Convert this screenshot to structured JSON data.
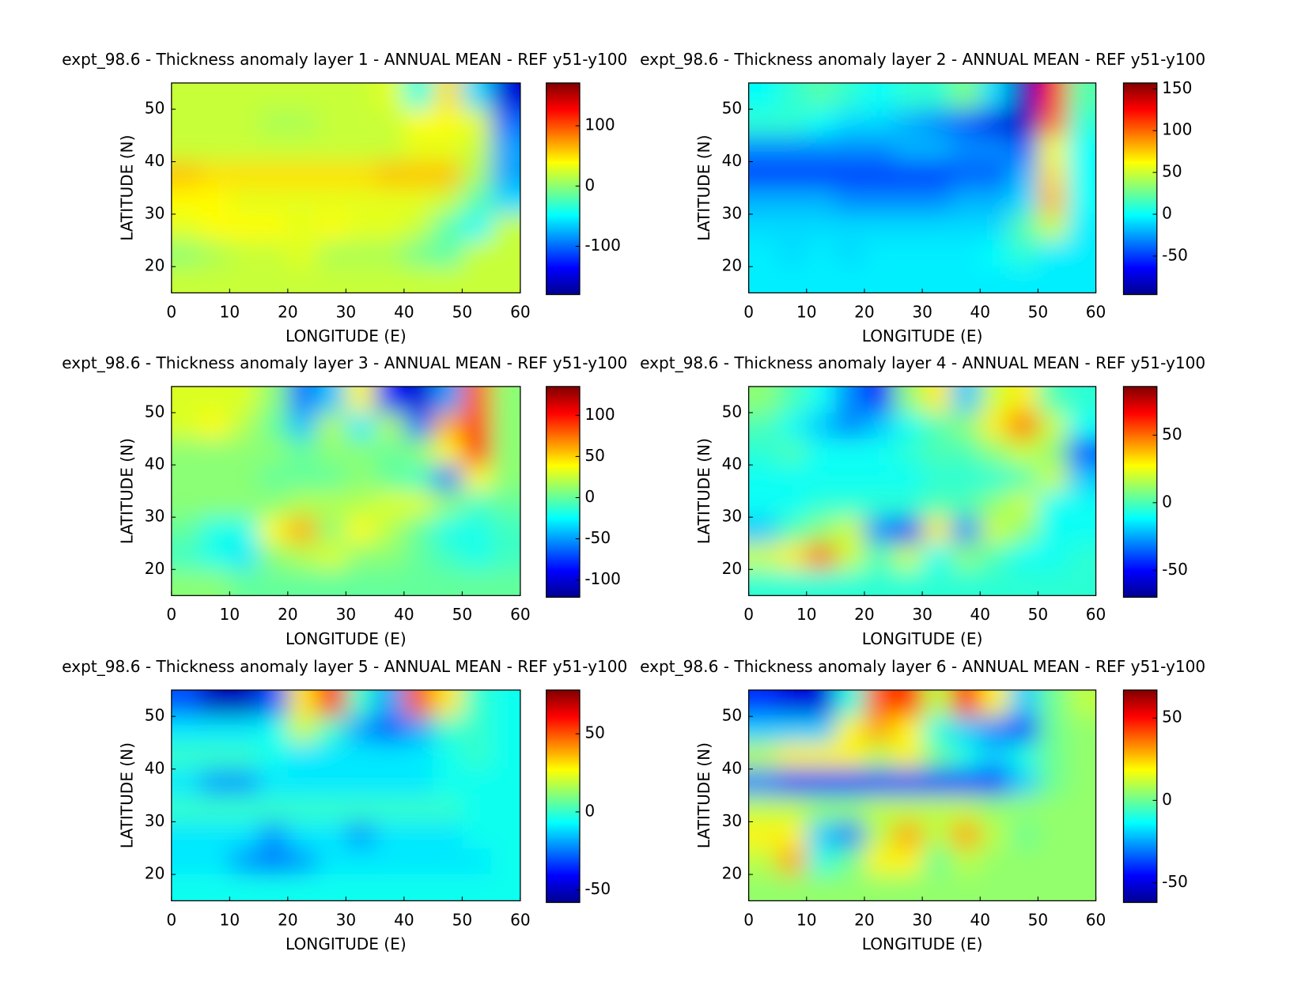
{
  "chart_data": [
    {
      "type": "contour",
      "title": "expt_98.6 - Thickness anomaly layer 1 - ANNUAL MEAN - REF y51-y100",
      "xlabel": "LONGITUDE (E)",
      "ylabel": "LATITUDE (N)",
      "xlim": [
        0,
        60
      ],
      "ylim": [
        15,
        55
      ],
      "xticks": [
        0,
        10,
        20,
        30,
        40,
        50,
        60
      ],
      "yticks": [
        20,
        30,
        40,
        50
      ],
      "colormap": "jet",
      "clim": [
        -180,
        171
      ],
      "cticks": [
        -100,
        0,
        100
      ],
      "x": [
        2.5,
        7.5,
        12.5,
        17.5,
        22.5,
        27.5,
        32.5,
        37.5,
        42.5,
        47.5,
        52.5,
        57.5
      ],
      "y": [
        52.5,
        47.5,
        42.5,
        37.5,
        32.5,
        27.5,
        22.5,
        17.5
      ],
      "z": [
        [
          20,
          20,
          20,
          20,
          20,
          20,
          20,
          30,
          -40,
          50,
          -60,
          -150
        ],
        [
          20,
          20,
          20,
          10,
          10,
          20,
          20,
          20,
          40,
          40,
          30,
          -100
        ],
        [
          20,
          20,
          20,
          20,
          20,
          20,
          20,
          20,
          30,
          30,
          20,
          -80
        ],
        [
          60,
          50,
          50,
          50,
          50,
          50,
          50,
          60,
          60,
          60,
          10,
          -80
        ],
        [
          40,
          40,
          30,
          30,
          30,
          30,
          30,
          30,
          30,
          20,
          -20,
          -60
        ],
        [
          30,
          40,
          40,
          40,
          30,
          40,
          30,
          30,
          20,
          -20,
          -50,
          20
        ],
        [
          0,
          10,
          20,
          20,
          30,
          10,
          10,
          10,
          -10,
          -20,
          20,
          20
        ],
        [
          20,
          20,
          20,
          20,
          20,
          20,
          20,
          20,
          20,
          20,
          20,
          20
        ]
      ]
    },
    {
      "type": "contour",
      "title": "expt_98.6 - Thickness anomaly layer 2 - ANNUAL MEAN - REF y51-y100",
      "xlabel": "LONGITUDE (E)",
      "ylabel": "LATITUDE (N)",
      "xlim": [
        0,
        60
      ],
      "ylim": [
        15,
        55
      ],
      "xticks": [
        0,
        10,
        20,
        30,
        40,
        50,
        60
      ],
      "yticks": [
        20,
        30,
        40,
        50
      ],
      "colormap": "jet",
      "clim": [
        -96,
        157
      ],
      "cticks": [
        -50,
        0,
        50,
        100,
        150
      ],
      "x": [
        2.5,
        7.5,
        12.5,
        17.5,
        22.5,
        27.5,
        32.5,
        37.5,
        42.5,
        47.5,
        52.5,
        57.5
      ],
      "y": [
        52.5,
        47.5,
        42.5,
        37.5,
        32.5,
        27.5,
        22.5,
        17.5
      ],
      "z": [
        [
          0,
          10,
          20,
          10,
          0,
          10,
          10,
          30,
          -10,
          -80,
          120,
          20
        ],
        [
          10,
          10,
          0,
          -10,
          -10,
          -20,
          -30,
          -40,
          -70,
          -80,
          100,
          10
        ],
        [
          -30,
          -30,
          -30,
          -30,
          -30,
          -20,
          -20,
          -30,
          -30,
          -40,
          60,
          0
        ],
        [
          -50,
          -50,
          -50,
          -50,
          -50,
          -50,
          -50,
          -40,
          -40,
          -20,
          70,
          0
        ],
        [
          -20,
          -20,
          -20,
          -30,
          -30,
          -30,
          -30,
          -20,
          -20,
          -10,
          80,
          0
        ],
        [
          -10,
          -10,
          -10,
          -10,
          -10,
          -10,
          -10,
          -10,
          -10,
          20,
          50,
          -5
        ],
        [
          -5,
          -10,
          -5,
          -10,
          -5,
          -5,
          -5,
          -5,
          0,
          10,
          -5,
          -5
        ],
        [
          -5,
          -5,
          -5,
          -5,
          -5,
          -5,
          -5,
          -5,
          -5,
          -5,
          -5,
          -5
        ]
      ]
    },
    {
      "type": "contour",
      "title": "expt_98.6 - Thickness anomaly layer 3 - ANNUAL MEAN - REF y51-y100",
      "xlabel": "LONGITUDE (E)",
      "ylabel": "LATITUDE (N)",
      "xlim": [
        0,
        60
      ],
      "ylim": [
        15,
        55
      ],
      "xticks": [
        0,
        10,
        20,
        30,
        40,
        50,
        60
      ],
      "yticks": [
        20,
        30,
        40,
        50
      ],
      "colormap": "jet",
      "clim": [
        -121,
        135
      ],
      "cticks": [
        -100,
        -50,
        0,
        50,
        100
      ],
      "x": [
        2.5,
        7.5,
        12.5,
        17.5,
        22.5,
        27.5,
        32.5,
        37.5,
        42.5,
        47.5,
        52.5,
        57.5
      ],
      "y": [
        52.5,
        47.5,
        42.5,
        37.5,
        32.5,
        27.5,
        22.5,
        17.5
      ],
      "z": [
        [
          30,
          30,
          30,
          10,
          -60,
          -40,
          40,
          -80,
          -100,
          -50,
          80,
          10
        ],
        [
          30,
          40,
          20,
          0,
          -40,
          20,
          -30,
          20,
          -60,
          60,
          90,
          10
        ],
        [
          10,
          10,
          10,
          10,
          0,
          10,
          10,
          0,
          10,
          40,
          100,
          10
        ],
        [
          10,
          10,
          10,
          0,
          0,
          0,
          10,
          0,
          -10,
          -60,
          40,
          10
        ],
        [
          10,
          10,
          10,
          10,
          20,
          20,
          20,
          30,
          30,
          10,
          -10,
          0
        ],
        [
          0,
          -20,
          -20,
          40,
          60,
          10,
          40,
          20,
          0,
          -20,
          -20,
          -10
        ],
        [
          -10,
          -20,
          -30,
          10,
          20,
          30,
          10,
          10,
          0,
          -10,
          -20,
          -10
        ],
        [
          10,
          10,
          0,
          0,
          0,
          0,
          0,
          0,
          0,
          0,
          0,
          0
        ]
      ]
    },
    {
      "type": "contour",
      "title": "expt_98.6 - Thickness anomaly layer 4 - ANNUAL MEAN - REF y51-y100",
      "xlabel": "LONGITUDE (E)",
      "ylabel": "LATITUDE (N)",
      "xlim": [
        0,
        60
      ],
      "ylim": [
        15,
        55
      ],
      "xticks": [
        0,
        10,
        20,
        30,
        40,
        50,
        60
      ],
      "yticks": [
        20,
        30,
        40,
        50
      ],
      "colormap": "jet",
      "clim": [
        -70,
        86
      ],
      "cticks": [
        -50,
        0,
        50
      ],
      "x": [
        2.5,
        7.5,
        12.5,
        17.5,
        22.5,
        27.5,
        32.5,
        37.5,
        42.5,
        47.5,
        52.5,
        57.5
      ],
      "y": [
        52.5,
        47.5,
        42.5,
        37.5,
        32.5,
        27.5,
        22.5,
        17.5
      ],
      "z": [
        [
          10,
          0,
          -10,
          -30,
          -50,
          10,
          30,
          -20,
          20,
          30,
          0,
          -5
        ],
        [
          0,
          -10,
          -20,
          -30,
          -20,
          -10,
          0,
          10,
          30,
          50,
          20,
          -10
        ],
        [
          -5,
          0,
          -10,
          -10,
          -10,
          -5,
          0,
          0,
          10,
          20,
          10,
          -40
        ],
        [
          -10,
          -10,
          -10,
          -10,
          -10,
          -10,
          -5,
          -5,
          -5,
          0,
          20,
          -20
        ],
        [
          -10,
          -10,
          -5,
          -5,
          -5,
          -5,
          0,
          0,
          10,
          20,
          -10,
          -10
        ],
        [
          -20,
          0,
          10,
          20,
          -30,
          -50,
          30,
          -30,
          20,
          10,
          -10,
          -10
        ],
        [
          20,
          30,
          50,
          20,
          0,
          20,
          -10,
          10,
          0,
          -10,
          -10,
          -5
        ],
        [
          -5,
          -5,
          -5,
          -5,
          -5,
          -5,
          -5,
          -5,
          -5,
          -5,
          -5,
          -5
        ]
      ]
    },
    {
      "type": "contour",
      "title": "expt_98.6 - Thickness anomaly layer 5 - ANNUAL MEAN - REF y51-y100",
      "xlabel": "LONGITUDE (E)",
      "ylabel": "LATITUDE (N)",
      "xlim": [
        0,
        60
      ],
      "ylim": [
        15,
        55
      ],
      "xticks": [
        0,
        10,
        20,
        30,
        40,
        50,
        60
      ],
      "yticks": [
        20,
        30,
        40,
        50
      ],
      "colormap": "jet",
      "clim": [
        -58,
        78
      ],
      "cticks": [
        -50,
        0,
        50
      ],
      "x": [
        2.5,
        7.5,
        12.5,
        17.5,
        22.5,
        27.5,
        32.5,
        37.5,
        42.5,
        47.5,
        52.5,
        57.5
      ],
      "y": [
        52.5,
        47.5,
        42.5,
        37.5,
        32.5,
        27.5,
        22.5,
        17.5
      ],
      "z": [
        [
          -30,
          -50,
          -50,
          -30,
          30,
          60,
          0,
          -20,
          50,
          30,
          0,
          -5
        ],
        [
          -10,
          -10,
          -10,
          -5,
          20,
          0,
          -20,
          -30,
          -20,
          0,
          0,
          -5
        ],
        [
          0,
          0,
          0,
          -5,
          -10,
          -10,
          -10,
          -10,
          -10,
          -5,
          0,
          -5
        ],
        [
          -10,
          -20,
          -20,
          -10,
          -10,
          -10,
          -10,
          -10,
          -10,
          -5,
          -5,
          -5
        ],
        [
          0,
          0,
          0,
          0,
          0,
          0,
          0,
          0,
          0,
          0,
          -5,
          -5
        ],
        [
          -10,
          -10,
          -10,
          -20,
          -10,
          -10,
          -20,
          -10,
          -10,
          -10,
          -5,
          -5
        ],
        [
          -10,
          -10,
          -20,
          -25,
          -20,
          -10,
          -10,
          -10,
          -10,
          -10,
          -10,
          -5
        ],
        [
          -5,
          -5,
          -5,
          -5,
          -5,
          -5,
          -5,
          -5,
          -5,
          -5,
          -5,
          -5
        ]
      ]
    },
    {
      "type": "contour",
      "title": "expt_98.6 - Thickness anomaly layer 6 - ANNUAL MEAN - REF y51-y100",
      "xlabel": "LONGITUDE (E)",
      "ylabel": "LATITUDE (N)",
      "xlim": [
        0,
        60
      ],
      "ylim": [
        15,
        55
      ],
      "xticks": [
        0,
        10,
        20,
        30,
        40,
        50,
        60
      ],
      "yticks": [
        20,
        30,
        40,
        50
      ],
      "colormap": "jet",
      "clim": [
        -62,
        67
      ],
      "cticks": [
        -50,
        0,
        50
      ],
      "x": [
        2.5,
        7.5,
        12.5,
        17.5,
        22.5,
        27.5,
        32.5,
        37.5,
        42.5,
        47.5,
        52.5,
        57.5
      ],
      "y": [
        52.5,
        47.5,
        42.5,
        37.5,
        32.5,
        27.5,
        22.5,
        17.5
      ],
      "z": [
        [
          -40,
          -50,
          -50,
          -10,
          40,
          50,
          10,
          50,
          20,
          -20,
          0,
          10
        ],
        [
          -20,
          -20,
          -20,
          20,
          30,
          20,
          -10,
          -20,
          -30,
          -40,
          0,
          5
        ],
        [
          10,
          20,
          20,
          20,
          10,
          20,
          0,
          -10,
          -20,
          -10,
          0,
          5
        ],
        [
          -30,
          -40,
          -40,
          -40,
          -40,
          -40,
          -40,
          -40,
          -40,
          -20,
          0,
          5
        ],
        [
          10,
          10,
          5,
          5,
          10,
          10,
          10,
          10,
          5,
          5,
          5,
          5
        ],
        [
          20,
          20,
          -20,
          -30,
          10,
          30,
          10,
          30,
          10,
          0,
          5,
          5
        ],
        [
          10,
          30,
          -10,
          0,
          20,
          20,
          0,
          10,
          5,
          5,
          5,
          5
        ],
        [
          5,
          5,
          5,
          5,
          5,
          5,
          5,
          5,
          5,
          5,
          5,
          5
        ]
      ]
    }
  ]
}
